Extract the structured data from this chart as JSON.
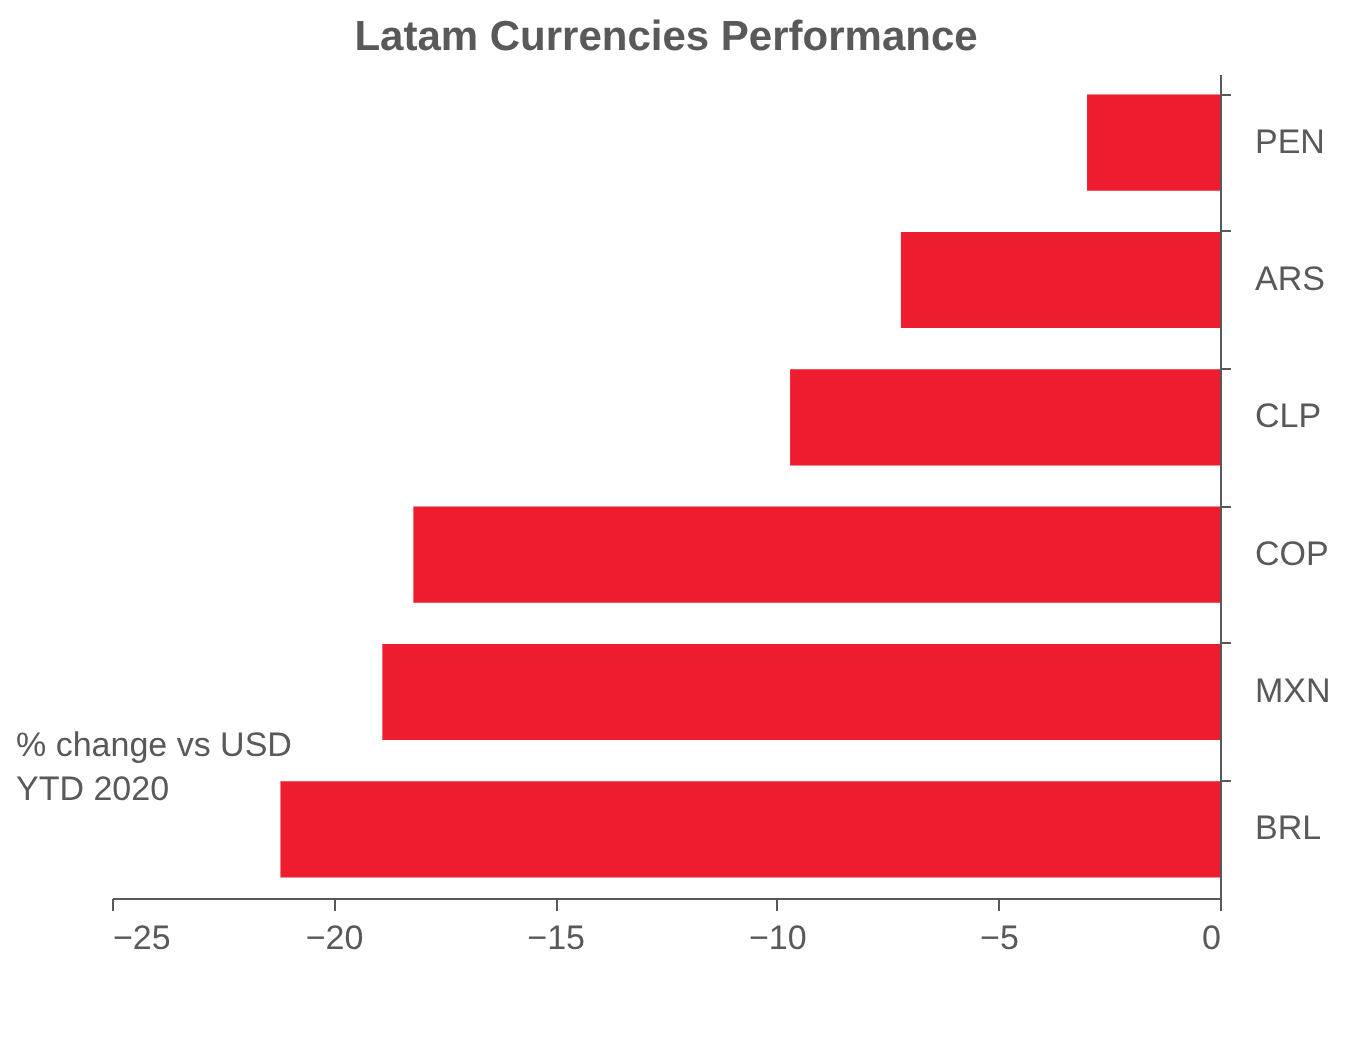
{
  "chart_data": {
    "type": "bar",
    "orientation": "horizontal",
    "title": "Latam Currencies Performance",
    "categories": [
      "PEN",
      "ARS",
      "CLP",
      "COP",
      "MXN",
      "BRL"
    ],
    "values": [
      -3.0,
      -7.2,
      -9.7,
      -18.2,
      -18.9,
      -21.2
    ],
    "color": "#ed1c2e",
    "xlim": [
      -25,
      0
    ],
    "xticks": [
      -25,
      -20,
      -15,
      -10,
      -5,
      0
    ],
    "annotations": [
      "% change vs USD\nYTD 2020"
    ],
    "grid": false
  }
}
